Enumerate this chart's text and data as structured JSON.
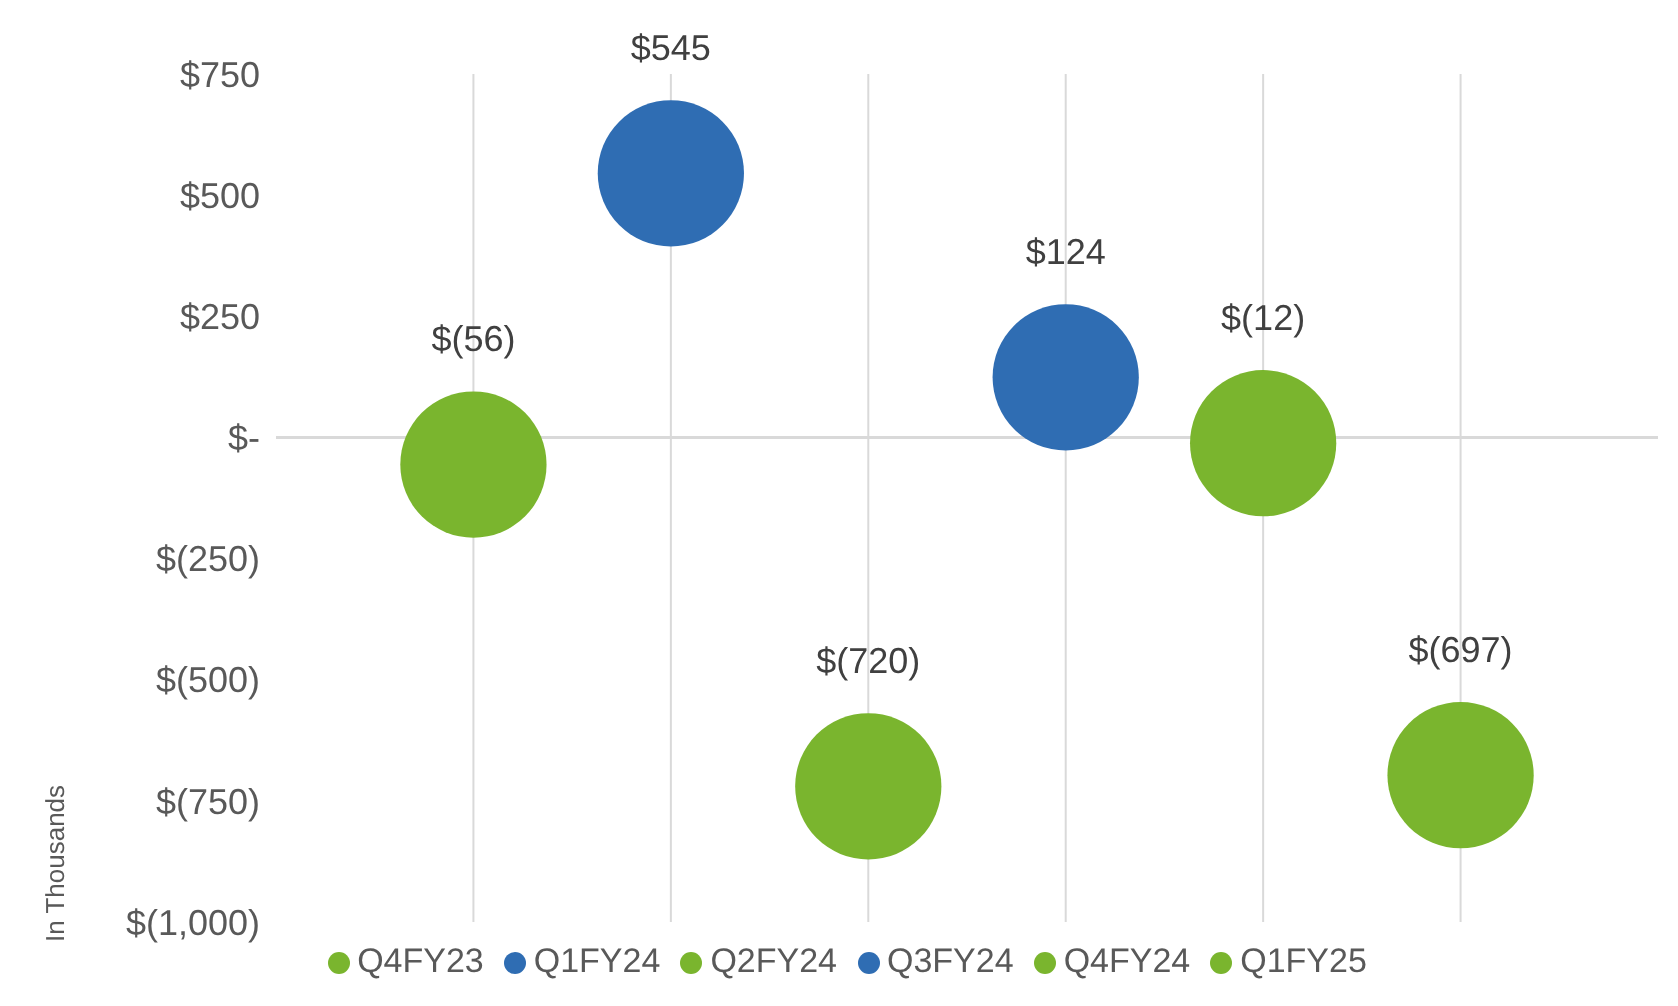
{
  "chart_data": {
    "type": "bubble",
    "ylabel": "In Thousands",
    "categories": [
      null,
      null,
      null,
      null,
      null,
      null
    ],
    "ylim": [
      -1000,
      750
    ],
    "yticks": [
      {
        "value": 750,
        "label": "$750"
      },
      {
        "value": 500,
        "label": "$500"
      },
      {
        "value": 250,
        "label": "$250"
      },
      {
        "value": 0,
        "label": "$-"
      },
      {
        "value": -250,
        "label": "$(250)"
      },
      {
        "value": -500,
        "label": "$(500)"
      },
      {
        "value": -750,
        "label": "$(750)"
      },
      {
        "value": -1000,
        "label": "$(1,000)"
      }
    ],
    "series": [
      {
        "name": "Q4FY23",
        "color": "#7ab52e",
        "values": [
          -56,
          null,
          null,
          null,
          null,
          null
        ],
        "sizes": [
          1,
          null,
          null,
          null,
          null,
          null
        ],
        "value_labels": [
          "$(56)",
          null,
          null,
          null,
          null,
          null
        ]
      },
      {
        "name": "Q1FY24",
        "color": "#2f6db3",
        "values": [
          null,
          545,
          null,
          null,
          null,
          null
        ],
        "sizes": [
          null,
          1,
          null,
          null,
          null,
          null
        ],
        "value_labels": [
          null,
          "$545",
          null,
          null,
          null,
          null
        ]
      },
      {
        "name": "Q2FY24",
        "color": "#7ab52e",
        "values": [
          null,
          null,
          -720,
          null,
          null,
          null
        ],
        "sizes": [
          null,
          null,
          1,
          null,
          null,
          null
        ],
        "value_labels": [
          null,
          null,
          "$(720)",
          null,
          null,
          null
        ]
      },
      {
        "name": "Q3FY24",
        "color": "#2f6db3",
        "values": [
          null,
          null,
          null,
          124,
          null,
          null
        ],
        "sizes": [
          null,
          null,
          null,
          1,
          null,
          null
        ],
        "value_labels": [
          null,
          null,
          null,
          "$124",
          null,
          null
        ]
      },
      {
        "name": "Q4FY24",
        "color": "#7ab52e",
        "values": [
          null,
          null,
          null,
          null,
          -12,
          null
        ],
        "sizes": [
          null,
          null,
          null,
          null,
          1,
          null
        ],
        "value_labels": [
          null,
          null,
          null,
          null,
          "$(12)",
          null
        ]
      },
      {
        "name": "Q1FY25",
        "color": "#7ab52e",
        "values": [
          null,
          null,
          null,
          null,
          null,
          -697
        ],
        "sizes": [
          null,
          null,
          null,
          null,
          null,
          1
        ],
        "value_labels": [
          null,
          null,
          null,
          null,
          null,
          "$(697)"
        ]
      }
    ],
    "ref_lines": [
      {
        "axis": "y",
        "value": 0,
        "color": "#d9d9d9"
      }
    ],
    "grid": "x",
    "legend": "bottom",
    "tick_labels": "y"
  }
}
